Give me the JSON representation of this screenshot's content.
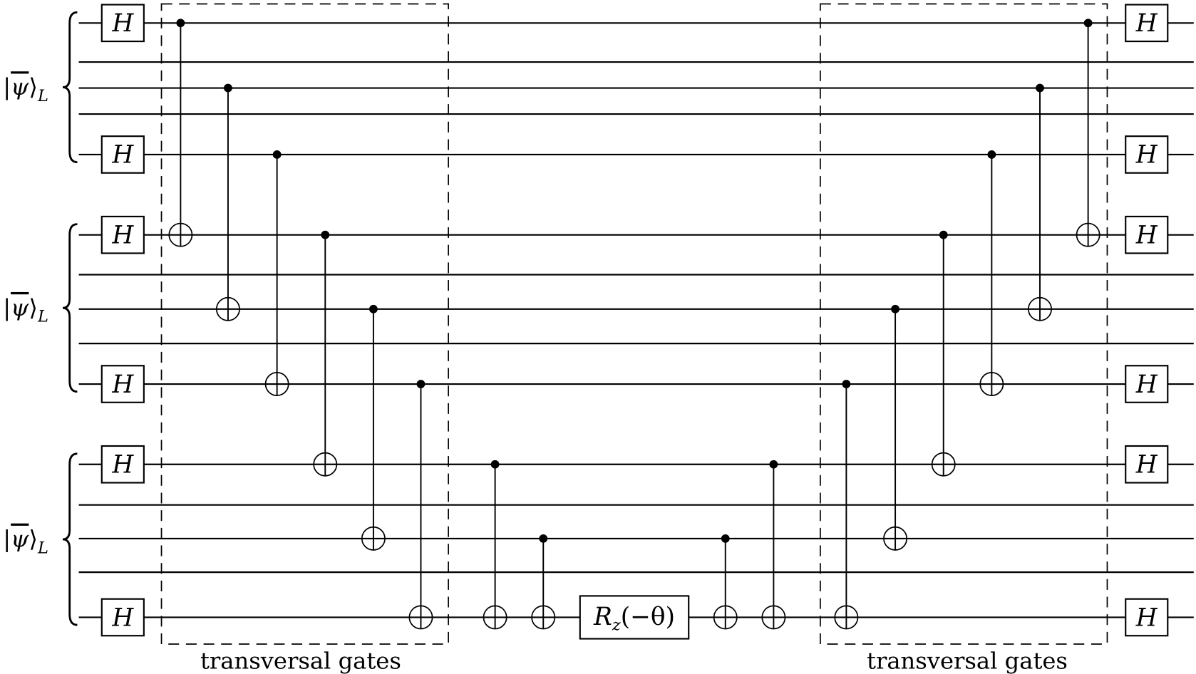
{
  "circuit": {
    "wire_count": 15,
    "register_label": {
      "bar_symbol": "ψ",
      "subscript": "L"
    },
    "registers": [
      {
        "label": "|ψ⟩_L",
        "wires": [
          0,
          1,
          2,
          3,
          4
        ]
      },
      {
        "label": "|ψ⟩_L",
        "wires": [
          5,
          6,
          7,
          8,
          9
        ]
      },
      {
        "label": "|ψ⟩_L",
        "wires": [
          10,
          11,
          12,
          13,
          14
        ]
      }
    ],
    "hadamard_label": "H",
    "hadamard_wires": [
      0,
      4,
      5,
      9,
      10,
      14
    ],
    "rotation_gate": {
      "base": "R",
      "sub": "z",
      "arg": "(−θ)",
      "wire": 14
    },
    "block_label": "transversal gates",
    "left_block_cnots": [
      [
        0,
        5
      ],
      [
        2,
        7
      ],
      [
        4,
        9
      ],
      [
        5,
        10
      ],
      [
        7,
        12
      ],
      [
        9,
        14
      ]
    ],
    "middle_cnots_before": [
      [
        10,
        14
      ],
      [
        12,
        14
      ]
    ],
    "middle_cnots_after": [
      [
        12,
        14
      ],
      [
        10,
        14
      ]
    ],
    "right_block_cnots": [
      [
        9,
        14
      ],
      [
        7,
        12
      ],
      [
        5,
        10
      ],
      [
        4,
        9
      ],
      [
        2,
        7
      ],
      [
        0,
        5
      ]
    ]
  }
}
